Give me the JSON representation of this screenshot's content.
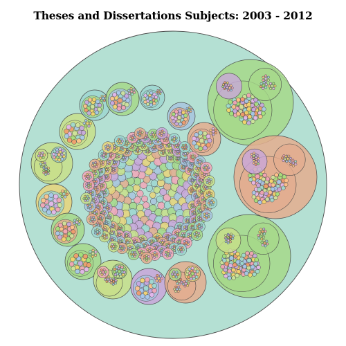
{
  "page": {
    "title": "Theses and Dissertations Subjects: 2003 - 2012"
  },
  "chart_data": {
    "type": "circle-packing",
    "legend": "none",
    "colors": {
      "root": "#b4e0d3",
      "groups": [
        "#a6d88a",
        "#e4ad8e",
        "#a8c4de",
        "#c9a6d9",
        "#e8d47a",
        "#f2a6b8",
        "#9ed6d0",
        "#c8df8a"
      ],
      "leaves": [
        "#c8a6e0",
        "#f4a3b6",
        "#f6d46a",
        "#9fd9d0",
        "#a4e07a",
        "#f29a6a",
        "#a6c8ec",
        "#e5b6ec",
        "#cfe39a",
        "#ffc28a"
      ]
    }
  }
}
